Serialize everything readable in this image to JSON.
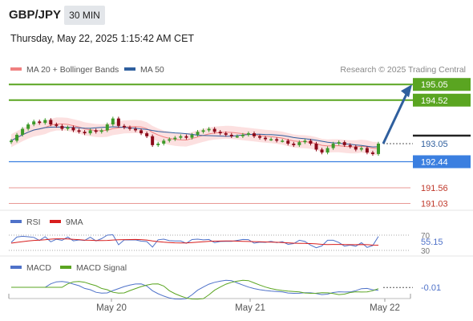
{
  "header": {
    "symbol": "GBP/JPY",
    "timeframe": "30 MIN",
    "datetime": "Thursday, May 22, 2025 1:15:42 AM CET"
  },
  "legend": {
    "ma20": "MA 20 + Bollinger Bands",
    "ma50": "MA 50",
    "credit": "Research © 2025 Trading Central"
  },
  "colors": {
    "up": "#3d9a2a",
    "down": "#8b0a1a",
    "resistance": "#5aa521",
    "support": "#3b7fe0",
    "extra_support": "#d9534f",
    "ma20": "#f08080",
    "ma50": "#2f5f9e",
    "band_fill": "#fbdada",
    "arrow": "#2f5f9e",
    "rsi": "#4f72c9",
    "rsi_ma": "#d81e1e",
    "macd": "#4f72c9",
    "macd_signal": "#5aa521"
  },
  "price_levels": [
    {
      "value": 195.05,
      "label": "195.05",
      "kind": "resistance"
    },
    {
      "value": 194.52,
      "label": "194.52",
      "kind": "resistance"
    },
    {
      "value": 193.05,
      "label": "193.05",
      "kind": "current"
    },
    {
      "value": 192.44,
      "label": "192.44",
      "kind": "support"
    },
    {
      "value": 191.56,
      "label": "191.56",
      "kind": "extra_support"
    },
    {
      "value": 191.03,
      "label": "191.03",
      "kind": "extra_support"
    }
  ],
  "rsi_panel": {
    "label": "RSI",
    "ma_label": "9MA",
    "levels": [
      "70",
      "30"
    ],
    "current": "55.15"
  },
  "macd_panel": {
    "label": "MACD",
    "signal_label": "MACD Signal",
    "current": "-0.01"
  },
  "x_labels": [
    "May 20",
    "May 21",
    "May 22"
  ],
  "chart_data": {
    "type": "candlestick",
    "ylim": [
      190.8,
      195.3
    ],
    "closes": [
      193.15,
      193.35,
      193.55,
      193.7,
      193.8,
      193.75,
      193.85,
      193.7,
      193.65,
      193.55,
      193.6,
      193.5,
      193.45,
      193.4,
      193.5,
      193.45,
      193.5,
      193.7,
      193.9,
      193.65,
      193.6,
      193.55,
      193.5,
      193.4,
      193.3,
      193.0,
      193.05,
      193.15,
      193.2,
      193.25,
      193.3,
      193.25,
      193.35,
      193.45,
      193.5,
      193.55,
      193.45,
      193.4,
      193.35,
      193.3,
      193.3,
      193.35,
      193.4,
      193.3,
      193.25,
      193.2,
      193.2,
      193.15,
      193.15,
      193.05,
      193.0,
      193.1,
      193.15,
      193.05,
      192.85,
      192.75,
      192.9,
      193.05,
      193.1,
      193.0,
      192.95,
      192.85,
      192.9,
      192.75,
      192.7,
      193.05
    ],
    "forecast": {
      "from": 193.05,
      "to": 195.05
    }
  }
}
